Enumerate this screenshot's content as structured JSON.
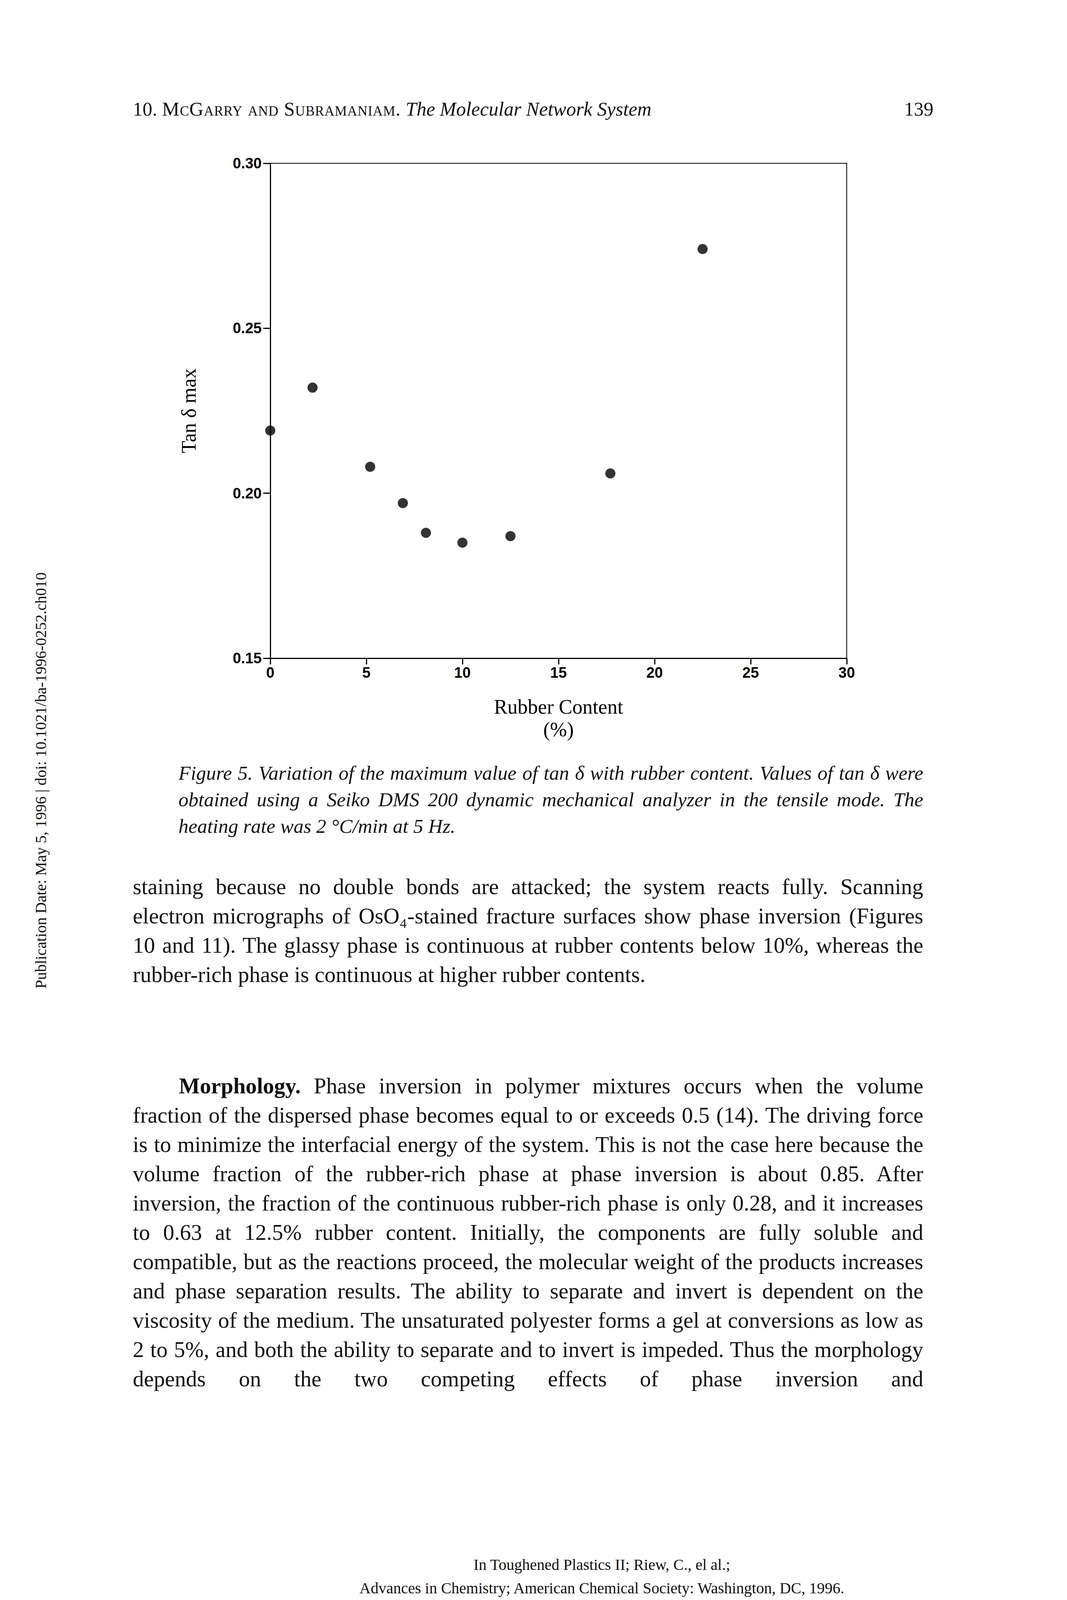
{
  "header": {
    "chapter": "10.",
    "authors": "McGarry and Subramaniam.",
    "title": "The Molecular Network System",
    "page": "139"
  },
  "chart_data": {
    "type": "scatter",
    "x": [
      0,
      2.2,
      5.2,
      6.9,
      8.1,
      10,
      12.5,
      17.7,
      22.5
    ],
    "values": [
      0.219,
      0.232,
      0.208,
      0.197,
      0.188,
      0.185,
      0.187,
      0.206,
      0.274
    ],
    "xlabel": "Rubber Content\n(%)",
    "ylabel": "Tan δ max",
    "xlim": [
      0,
      30
    ],
    "ylim": [
      0.15,
      0.3
    ],
    "xticks": [
      0,
      5,
      10,
      15,
      20,
      25,
      30
    ],
    "yticks": [
      0.15,
      {
        "value": 0.2,
        "label": "0.20"
      },
      0.25,
      {
        "value": 0.3,
        "label": "0.30"
      }
    ],
    "color": "#000000",
    "marker": "circle",
    "grid": false
  },
  "caption": "Figure 5. Variation of the maximum value of tan δ with rubber content. Values of tan δ were obtained using a Seiko DMS 200 dynamic mechanical analyzer in the tensile mode. The heating rate was 2 °C/min at 5 Hz.",
  "paragraphs": [
    {
      "text": "staining because no double bonds are attacked; the system reacts fully. Scanning electron micrographs of OsO₄-stained fracture surfaces show phase inversion (Figures 10 and 11). The glassy phase is continuous at rubber contents below 10%, whereas the rubber-rich phase is continuous at higher rubber contents."
    },
    {
      "heading": "Morphology.",
      "text": "Phase inversion in polymer mixtures occurs when the volume fraction of the dispersed phase becomes equal to or exceeds 0.5 (14). The driving force is to minimize the interfacial energy of the system. This is not the case here because the volume fraction of the rubber-rich phase at phase inversion is about 0.85. After inversion, the fraction of the continuous rubber-rich phase is only 0.28, and it increases to 0.63 at 12.5% rubber content. Initially, the components are fully soluble and compatible, but as the reactions proceed, the molecular weight of the products increases and phase separation results. The ability to separate and invert is dependent on the viscosity of the medium. The unsaturated polyester forms a gel at conversions as low as 2 to 5%, and both the ability to separate and to invert is impeded. Thus the morphology depends on the two competing effects of phase inversion and"
    }
  ],
  "side_note": "Publication Date: May 5, 1996 | doi: 10.1021/ba-1996-0252.ch010",
  "footer": [
    "In Toughened Plastics II; Riew, C., el al.;",
    "Advances in Chemistry; American Chemical Society: Washington, DC, 1996."
  ]
}
